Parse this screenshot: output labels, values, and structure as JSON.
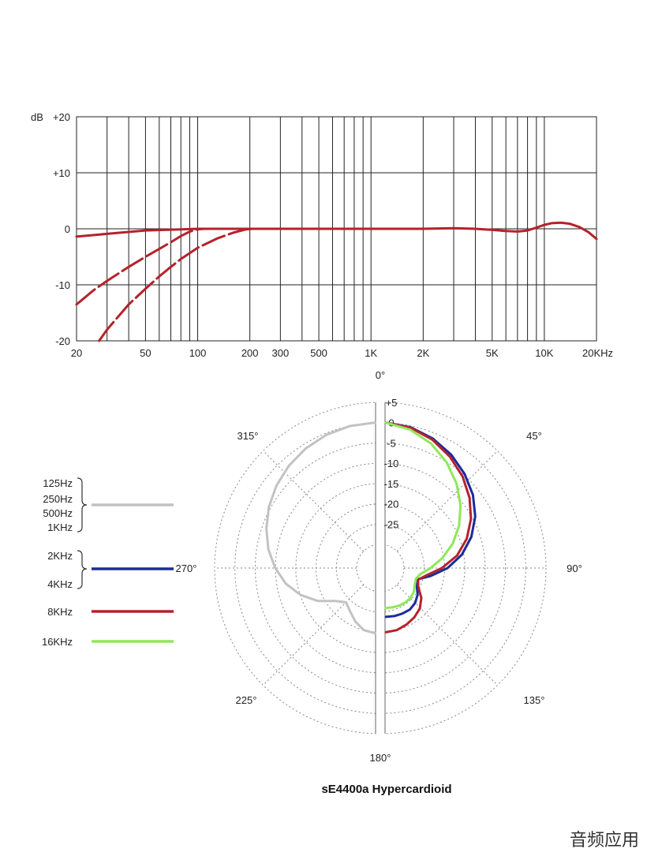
{
  "chart_data": [
    {
      "type": "line",
      "chart": "frequency-response",
      "y_unit_label": "dB",
      "x_scale": "log",
      "xlim": [
        20,
        20000
      ],
      "ylim": [
        -20,
        20
      ],
      "grid": true,
      "y_ticks": [
        {
          "value": 20,
          "label": "+20"
        },
        {
          "value": 10,
          "label": "+10"
        },
        {
          "value": 0,
          "label": "0"
        },
        {
          "value": -10,
          "label": "-10"
        },
        {
          "value": -20,
          "label": "-20"
        }
      ],
      "x_ticks": [
        {
          "value": 20,
          "label": "20"
        },
        {
          "value": 50,
          "label": "50"
        },
        {
          "value": 100,
          "label": "100"
        },
        {
          "value": 200,
          "label": "200"
        },
        {
          "value": 300,
          "label": "300"
        },
        {
          "value": 500,
          "label": "500"
        },
        {
          "value": 1000,
          "label": "1K"
        },
        {
          "value": 2000,
          "label": "2K"
        },
        {
          "value": 5000,
          "label": "5K"
        },
        {
          "value": 10000,
          "label": "10K"
        },
        {
          "value": 20000,
          "label": "20KHz"
        }
      ],
      "x_gridlines": [
        20,
        30,
        40,
        50,
        60,
        70,
        80,
        90,
        100,
        200,
        300,
        400,
        500,
        600,
        700,
        800,
        900,
        1000,
        2000,
        3000,
        4000,
        5000,
        6000,
        7000,
        8000,
        9000,
        10000,
        20000
      ],
      "series": [
        {
          "style": "solid",
          "color": "#b5222b",
          "points": [
            [
              20,
              -1.4
            ],
            [
              30,
              -0.9
            ],
            [
              50,
              -0.3
            ],
            [
              80,
              -0.1
            ],
            [
              100,
              0
            ],
            [
              200,
              0
            ],
            [
              500,
              0
            ],
            [
              1000,
              0
            ],
            [
              2000,
              0
            ],
            [
              3000,
              0.1
            ],
            [
              4000,
              0
            ],
            [
              5000,
              -0.2
            ],
            [
              6000,
              -0.4
            ],
            [
              7000,
              -0.5
            ],
            [
              8000,
              -0.3
            ],
            [
              9000,
              0.2
            ],
            [
              10000,
              0.7
            ],
            [
              11000,
              1.0
            ],
            [
              12500,
              1.1
            ],
            [
              14000,
              0.9
            ],
            [
              16000,
              0.3
            ],
            [
              18000,
              -0.6
            ],
            [
              20000,
              -1.8
            ]
          ]
        },
        {
          "style": "dashed",
          "color": "#b5222b",
          "points": [
            [
              20,
              -13.5
            ],
            [
              25,
              -11
            ],
            [
              30,
              -9.3
            ],
            [
              40,
              -6.8
            ],
            [
              50,
              -5
            ],
            [
              60,
              -3.6
            ],
            [
              70,
              -2.4
            ],
            [
              80,
              -1.3
            ],
            [
              90,
              -0.5
            ],
            [
              100,
              -0.1
            ],
            [
              110,
              0
            ],
            [
              200,
              0
            ]
          ]
        },
        {
          "style": "dashed",
          "color": "#b5222b",
          "points": [
            [
              27,
              -20
            ],
            [
              30,
              -18
            ],
            [
              40,
              -13.5
            ],
            [
              50,
              -10.7
            ],
            [
              60,
              -8.5
            ],
            [
              70,
              -6.8
            ],
            [
              80,
              -5.4
            ],
            [
              100,
              -3.4
            ],
            [
              130,
              -1.7
            ],
            [
              160,
              -0.7
            ],
            [
              190,
              -0.1
            ],
            [
              210,
              0
            ],
            [
              300,
              0
            ]
          ]
        }
      ]
    },
    {
      "type": "polar",
      "chart": "polar-pattern",
      "title": "sE4400a  Hypercardioid",
      "angle_labels": [
        {
          "deg": 0,
          "label": "0°"
        },
        {
          "deg": 45,
          "label": "45°"
        },
        {
          "deg": 90,
          "label": "90°"
        },
        {
          "deg": 135,
          "label": "135°"
        },
        {
          "deg": 180,
          "label": "180°"
        },
        {
          "deg": 225,
          "label": "225°"
        },
        {
          "deg": 270,
          "label": "270°"
        },
        {
          "deg": 315,
          "label": "315°"
        }
      ],
      "ring_labels": [
        "+5",
        "0",
        "-5",
        "-10",
        "-15",
        "-20",
        "-25"
      ],
      "ring_db": [
        5,
        0,
        -5,
        -10,
        -15,
        -20,
        -25
      ],
      "rlim_db": [
        -30,
        5
      ],
      "legend": [
        {
          "labels": [
            "125Hz",
            "250Hz",
            "500Hz",
            "1KHz"
          ],
          "color": "#c2c2c2",
          "bracket": true
        },
        {
          "labels": [
            "2KHz",
            "4KHz"
          ],
          "color": "#1c2b9a",
          "bracket": true
        },
        {
          "labels": [
            "8KHz"
          ],
          "color": "#b5222b",
          "bracket": false
        },
        {
          "labels": [
            "16KHz"
          ],
          "color": "#8ee85a",
          "bracket": false
        }
      ],
      "series": [
        {
          "color": "#c2c2c2",
          "side": "left",
          "points_deg_db": [
            [
              0,
              0
            ],
            [
              10,
              -0.3
            ],
            [
              20,
              -0.9
            ],
            [
              30,
              -1.8
            ],
            [
              40,
              -2.9
            ],
            [
              50,
              -4.2
            ],
            [
              60,
              -5.7
            ],
            [
              70,
              -7.4
            ],
            [
              80,
              -9.2
            ],
            [
              90,
              -11.3
            ],
            [
              100,
              -13.6
            ],
            [
              110,
              -16.4
            ],
            [
              120,
              -19.6
            ],
            [
              130,
              -23.2
            ],
            [
              140,
              -24.8
            ],
            [
              150,
              -23.6
            ],
            [
              160,
              -21.8
            ],
            [
              170,
              -20.3
            ],
            [
              180,
              -19.8
            ]
          ]
        },
        {
          "color": "#1c2b9a",
          "side": "right",
          "points_deg_db": [
            [
              0,
              0
            ],
            [
              10,
              -0.6
            ],
            [
              20,
              -1.9
            ],
            [
              30,
              -3.6
            ],
            [
              40,
              -5.6
            ],
            [
              50,
              -7.8
            ],
            [
              60,
              -10.4
            ],
            [
              70,
              -13.4
            ],
            [
              80,
              -16.8
            ],
            [
              90,
              -20.6
            ],
            [
              100,
              -24.6
            ],
            [
              110,
              -27.6
            ],
            [
              120,
              -27.0
            ],
            [
              130,
              -25.6
            ],
            [
              140,
              -24.6
            ],
            [
              150,
              -24.0
            ],
            [
              160,
              -23.9
            ],
            [
              170,
              -23.8
            ],
            [
              180,
              -23.8
            ]
          ]
        },
        {
          "color": "#b5222b",
          "side": "right",
          "points_deg_db": [
            [
              0,
              0
            ],
            [
              10,
              -0.7
            ],
            [
              20,
              -2.2
            ],
            [
              30,
              -4.2
            ],
            [
              40,
              -6.4
            ],
            [
              50,
              -8.9
            ],
            [
              60,
              -11.6
            ],
            [
              70,
              -14.6
            ],
            [
              80,
              -18.0
            ],
            [
              90,
              -22.0
            ],
            [
              100,
              -25.6
            ],
            [
              110,
              -27.4
            ],
            [
              120,
              -26.6
            ],
            [
              130,
              -24.4
            ],
            [
              140,
              -22.8
            ],
            [
              150,
              -21.8
            ],
            [
              160,
              -21.0
            ],
            [
              170,
              -20.3
            ],
            [
              180,
              -20.0
            ]
          ]
        },
        {
          "color": "#8ee85a",
          "side": "right",
          "points_deg_db": [
            [
              0,
              0
            ],
            [
              10,
              -1.2
            ],
            [
              20,
              -3.2
            ],
            [
              30,
              -5.8
            ],
            [
              40,
              -8.7
            ],
            [
              50,
              -11.8
            ],
            [
              60,
              -15.0
            ],
            [
              70,
              -18.3
            ],
            [
              80,
              -21.7
            ],
            [
              90,
              -24.8
            ],
            [
              100,
              -27.2
            ],
            [
              110,
              -28.0
            ],
            [
              120,
              -27.6
            ],
            [
              130,
              -26.8
            ],
            [
              140,
              -26.3
            ],
            [
              150,
              -26.1
            ],
            [
              160,
              -26.0
            ],
            [
              170,
              -26.0
            ],
            [
              180,
              -26.0
            ]
          ]
        }
      ]
    }
  ],
  "watermark": "音频应用"
}
